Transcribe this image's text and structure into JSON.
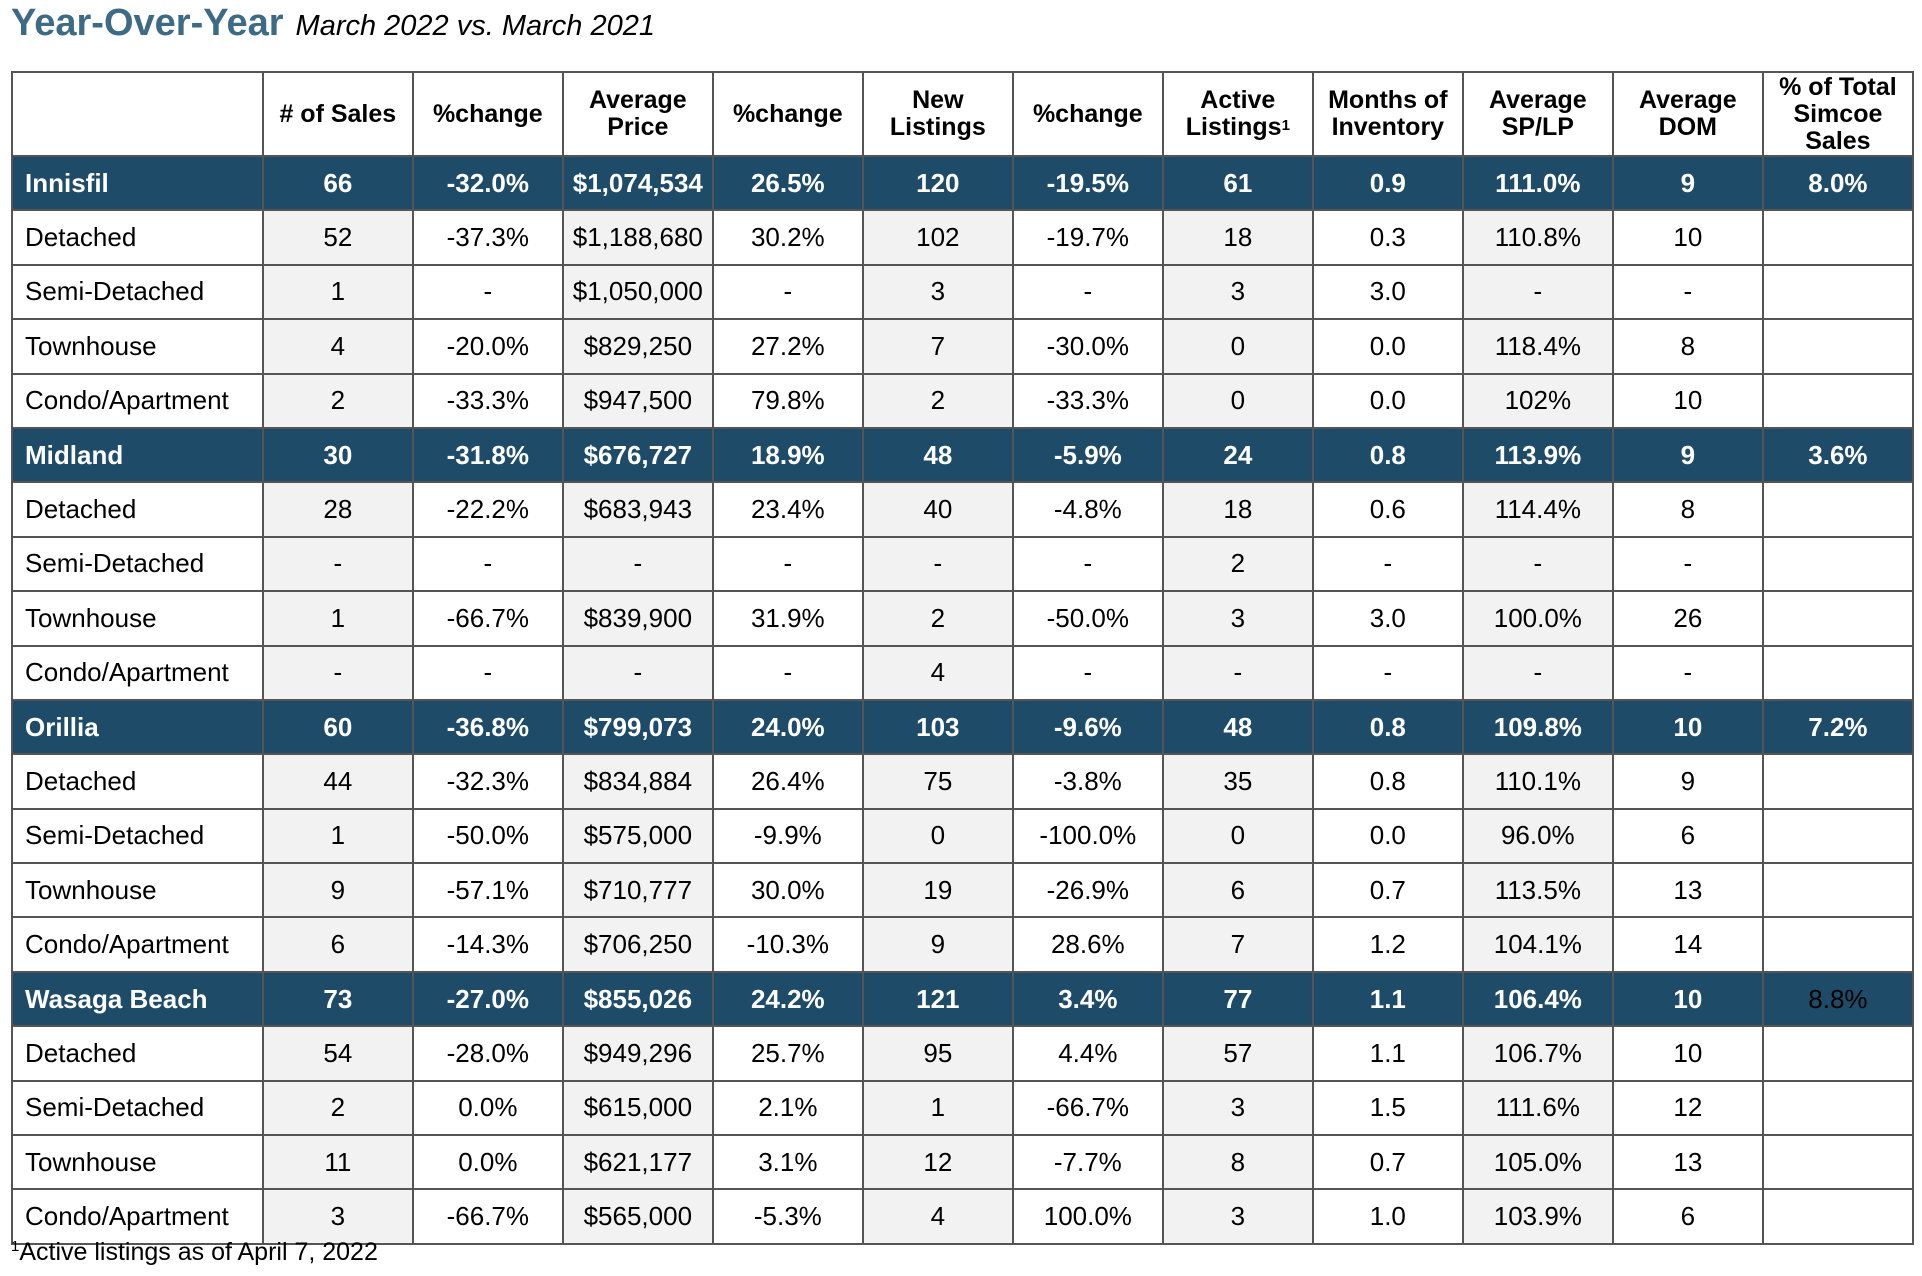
{
  "title": {
    "main": "Year-Over-Year",
    "subtitle": "March 2022 vs. March 2021"
  },
  "table": {
    "headers": [
      "",
      "# of Sales",
      "%change",
      "Average Price",
      "%change",
      "New Listings",
      "%change",
      "Active Listings",
      "Months of Inventory",
      "Average SP/LP",
      "Average DOM",
      "% of Total Simcoe Sales"
    ],
    "header_footnote_marker": "1",
    "groups": [
      {
        "summary": [
          "Innisfil",
          "66",
          "-32.0%",
          "$1,074,534",
          "26.5%",
          "120",
          "-19.5%",
          "61",
          "0.9",
          "111.0%",
          "9",
          "8.0%"
        ],
        "rows": [
          [
            "Detached",
            "52",
            "-37.3%",
            "$1,188,680",
            "30.2%",
            "102",
            "-19.7%",
            "18",
            "0.3",
            "110.8%",
            "10",
            ""
          ],
          [
            "Semi-Detached",
            "1",
            "-",
            "$1,050,000",
            "-",
            "3",
            "-",
            "3",
            "3.0",
            "-",
            "-",
            ""
          ],
          [
            "Townhouse",
            "4",
            "-20.0%",
            "$829,250",
            "27.2%",
            "7",
            "-30.0%",
            "0",
            "0.0",
            "118.4%",
            "8",
            ""
          ],
          [
            "Condo/Apartment",
            "2",
            "-33.3%",
            "$947,500",
            "79.8%",
            "2",
            "-33.3%",
            "0",
            "0.0",
            "102%",
            "10",
            ""
          ]
        ]
      },
      {
        "summary": [
          "Midland",
          "30",
          "-31.8%",
          "$676,727",
          "18.9%",
          "48",
          "-5.9%",
          "24",
          "0.8",
          "113.9%",
          "9",
          "3.6%"
        ],
        "rows": [
          [
            "Detached",
            "28",
            "-22.2%",
            "$683,943",
            "23.4%",
            "40",
            "-4.8%",
            "18",
            "0.6",
            "114.4%",
            "8",
            ""
          ],
          [
            "Semi-Detached",
            "-",
            "-",
            "-",
            "-",
            "-",
            "-",
            "2",
            "-",
            "-",
            "-",
            ""
          ],
          [
            "Townhouse",
            "1",
            "-66.7%",
            "$839,900",
            "31.9%",
            "2",
            "-50.0%",
            "3",
            "3.0",
            "100.0%",
            "26",
            ""
          ],
          [
            "Condo/Apartment",
            "-",
            "-",
            "-",
            "-",
            "4",
            "-",
            "-",
            "-",
            "-",
            "-",
            ""
          ]
        ]
      },
      {
        "summary": [
          "Orillia",
          "60",
          "-36.8%",
          "$799,073",
          "24.0%",
          "103",
          "-9.6%",
          "48",
          "0.8",
          "109.8%",
          "10",
          "7.2%"
        ],
        "rows": [
          [
            "Detached",
            "44",
            "-32.3%",
            "$834,884",
            "26.4%",
            "75",
            "-3.8%",
            "35",
            "0.8",
            "110.1%",
            "9",
            ""
          ],
          [
            "Semi-Detached",
            "1",
            "-50.0%",
            "$575,000",
            "-9.9%",
            "0",
            "-100.0%",
            "0",
            "0.0",
            "96.0%",
            "6",
            ""
          ],
          [
            "Townhouse",
            "9",
            "-57.1%",
            "$710,777",
            "30.0%",
            "19",
            "-26.9%",
            "6",
            "0.7",
            "113.5%",
            "13",
            ""
          ],
          [
            "Condo/Apartment",
            "6",
            "-14.3%",
            "$706,250",
            "-10.3%",
            "9",
            "28.6%",
            "7",
            "1.2",
            "104.1%",
            "14",
            ""
          ]
        ]
      },
      {
        "summary": [
          "Wasaga Beach",
          "73",
          "-27.0%",
          "$855,026",
          "24.2%",
          "121",
          "3.4%",
          "77",
          "1.1",
          "106.4%",
          "10",
          "8.8%"
        ],
        "rows": [
          [
            "Detached",
            "54",
            "-28.0%",
            "$949,296",
            "25.7%",
            "95",
            "4.4%",
            "57",
            "1.1",
            "106.7%",
            "10",
            ""
          ],
          [
            "Semi-Detached",
            "2",
            "0.0%",
            "$615,000",
            "2.1%",
            "1",
            "-66.7%",
            "3",
            "1.5",
            "111.6%",
            "12",
            ""
          ],
          [
            "Townhouse",
            "11",
            "0.0%",
            "$621,177",
            "3.1%",
            "12",
            "-7.7%",
            "8",
            "0.7",
            "105.0%",
            "13",
            ""
          ],
          [
            "Condo/Apartment",
            "3",
            "-66.7%",
            "$565,000",
            "-5.3%",
            "4",
            "100.0%",
            "3",
            "1.0",
            "103.9%",
            "6",
            ""
          ]
        ]
      }
    ]
  },
  "footnote": {
    "marker": "1",
    "text": "Active listings as of April 7, 2022"
  },
  "colors": {
    "title": "#3d6b86",
    "group_row_background": "#1d4b68",
    "group_row_text": "#ffffff",
    "shaded_cell": "#f2f2f2",
    "border": "#555555"
  }
}
